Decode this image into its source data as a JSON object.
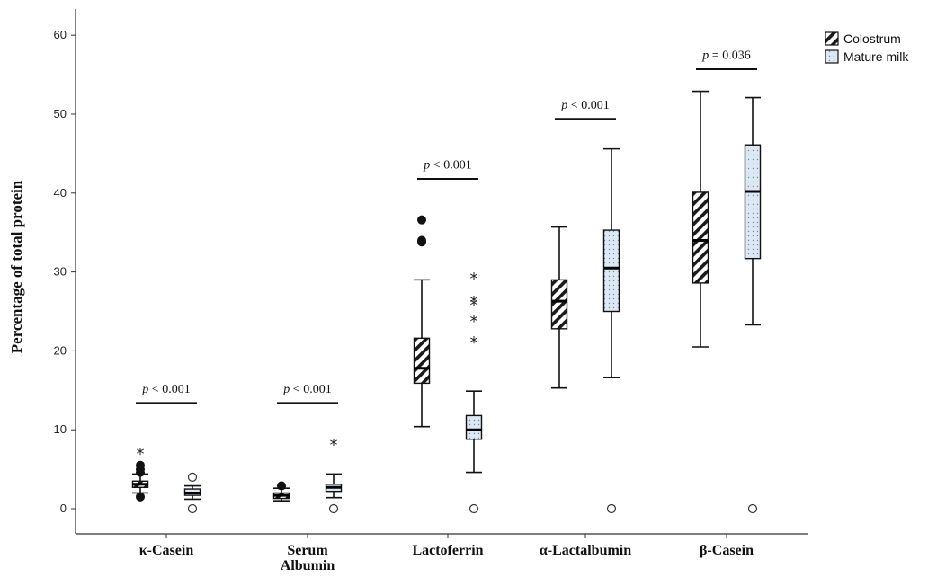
{
  "chart_data": {
    "type": "box",
    "ylabel": "Percentage of total protein",
    "xlabel": "",
    "ylim": [
      0,
      63
    ],
    "yticks": [
      0,
      10,
      20,
      30,
      40,
      50,
      60
    ],
    "ytick_labels": [
      "0",
      "10",
      "20",
      "30",
      "40",
      "50",
      "60"
    ],
    "categories": [
      {
        "lines": [
          "κ-Casein"
        ]
      },
      {
        "lines": [
          "Serum",
          "Albumin"
        ]
      },
      {
        "lines": [
          "Lactoferrin"
        ]
      },
      {
        "lines": [
          "α-Lactalbumin"
        ]
      },
      {
        "lines": [
          "β-Casein"
        ]
      }
    ],
    "legend": {
      "position": "top-right",
      "entries": [
        {
          "name": "Colostrum",
          "pattern": "diagonal-hatch"
        },
        {
          "name": "Mature milk",
          "pattern": "dotted"
        }
      ]
    },
    "series": [
      {
        "name": "Colostrum",
        "pattern": "diagonal-hatch",
        "boxes": [
          {
            "min": 2.0,
            "q1": 2.7,
            "median": 3.1,
            "q3": 3.5,
            "max": 4.4,
            "outliers": [
              4.6,
              5.0,
              5.5,
              1.5
            ],
            "outlier_marker": "filled",
            "extremes": [
              7.2
            ]
          },
          {
            "min": 1.0,
            "q1": 1.3,
            "median": 1.7,
            "q3": 2.0,
            "max": 2.6,
            "outliers": [
              2.9
            ],
            "outlier_marker": "filled",
            "extremes": []
          },
          {
            "min": 10.4,
            "q1": 15.9,
            "median": 17.8,
            "q3": 21.6,
            "max": 29.0,
            "outliers": [
              33.8,
              34.0,
              36.6
            ],
            "outlier_marker": "filled",
            "extremes": []
          },
          {
            "min": 15.3,
            "q1": 22.8,
            "median": 26.3,
            "q3": 29.0,
            "max": 35.7,
            "outliers": [],
            "outlier_marker": "filled",
            "extremes": []
          },
          {
            "min": 20.5,
            "q1": 28.6,
            "median": 34.0,
            "q3": 40.1,
            "max": 52.9,
            "outliers": [],
            "outlier_marker": "filled",
            "extremes": []
          }
        ]
      },
      {
        "name": "Mature milk",
        "pattern": "dotted",
        "boxes": [
          {
            "min": 1.2,
            "q1": 1.7,
            "median": 2.0,
            "q3": 2.5,
            "max": 2.9,
            "outliers": [
              0,
              4.0
            ],
            "outlier_marker": "open",
            "extremes": []
          },
          {
            "min": 1.4,
            "q1": 2.2,
            "median": 2.7,
            "q3": 3.1,
            "max": 4.4,
            "outliers": [
              0
            ],
            "outlier_marker": "open",
            "extremes": [
              8.3
            ]
          },
          {
            "min": 4.6,
            "q1": 8.8,
            "median": 10.0,
            "q3": 11.8,
            "max": 14.9,
            "outliers": [
              0
            ],
            "outlier_marker": "open",
            "extremes": [
              21.3,
              24.0,
              26.0,
              26.4,
              29.4
            ]
          },
          {
            "min": 16.6,
            "q1": 25.0,
            "median": 30.5,
            "q3": 35.3,
            "max": 45.6,
            "outliers": [
              0
            ],
            "outlier_marker": "open",
            "extremes": []
          },
          {
            "min": 23.3,
            "q1": 31.7,
            "median": 40.2,
            "q3": 46.1,
            "max": 52.1,
            "outliers": [
              0
            ],
            "outlier_marker": "open",
            "extremes": []
          }
        ]
      }
    ],
    "annotations": [
      {
        "category": 0,
        "p_symbol": "p",
        "p_rest": " < 0.001",
        "bar_y": 13.4,
        "label_y": 14.7
      },
      {
        "category": 1,
        "p_symbol": "p",
        "p_rest": " < 0.001",
        "bar_y": 13.4,
        "label_y": 14.7
      },
      {
        "category": 2,
        "p_symbol": "p",
        "p_rest": " < 0.001",
        "bar_y": 41.8,
        "label_y": 43.1
      },
      {
        "category": 3,
        "p_symbol": "p",
        "p_rest": " < 0.001",
        "bar_y": 49.4,
        "label_y": 50.7
      },
      {
        "category": 4,
        "p_symbol": "p",
        "p_rest": " = 0.036",
        "bar_y": 55.7,
        "label_y": 57.0
      }
    ],
    "grid": false
  }
}
